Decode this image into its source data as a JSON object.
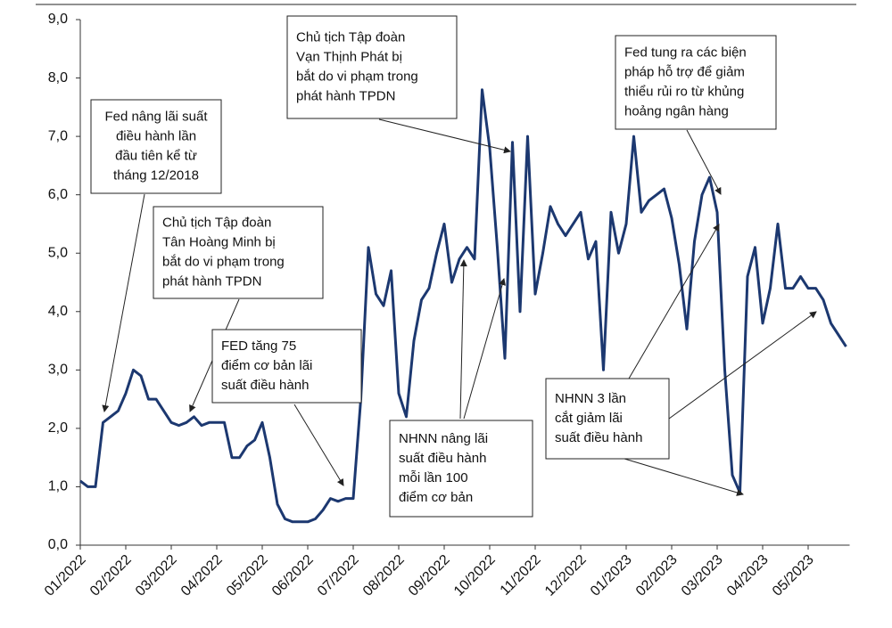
{
  "chart_data": {
    "type": "line",
    "categories": [
      "01/2022",
      null,
      null,
      null,
      null,
      null,
      "02/2022",
      null,
      null,
      null,
      null,
      null,
      "03/2022",
      null,
      null,
      null,
      null,
      null,
      "04/2022",
      null,
      null,
      null,
      null,
      null,
      "05/2022",
      null,
      null,
      null,
      null,
      null,
      "06/2022",
      null,
      null,
      null,
      null,
      null,
      "07/2022",
      null,
      null,
      null,
      null,
      null,
      "08/2022",
      null,
      null,
      null,
      null,
      null,
      "09/2022",
      null,
      null,
      null,
      null,
      null,
      "10/2022",
      null,
      null,
      null,
      null,
      null,
      "11/2022",
      null,
      null,
      null,
      null,
      null,
      "12/2022",
      null,
      null,
      null,
      null,
      null,
      "01/2023",
      null,
      null,
      null,
      null,
      null,
      "02/2023",
      null,
      null,
      null,
      null,
      null,
      "03/2023",
      null,
      null,
      null,
      null,
      null,
      "04/2023",
      null,
      null,
      null,
      null,
      null,
      "05/2023",
      null,
      null,
      null,
      null,
      null
    ],
    "series": [
      {
        "color": "#1c3870",
        "values": [
          1.1,
          1.0,
          1.0,
          2.1,
          2.2,
          2.3,
          2.6,
          3.0,
          2.9,
          2.5,
          2.5,
          2.3,
          2.1,
          2.05,
          2.1,
          2.2,
          2.05,
          2.1,
          2.1,
          2.1,
          1.5,
          1.5,
          1.7,
          1.8,
          2.1,
          1.5,
          0.7,
          0.45,
          0.4,
          0.4,
          0.4,
          0.45,
          0.6,
          0.8,
          0.75,
          0.8,
          0.8,
          2.5,
          5.1,
          4.3,
          4.1,
          4.7,
          2.6,
          2.2,
          3.5,
          4.2,
          4.4,
          5.0,
          5.5,
          4.5,
          4.9,
          5.1,
          4.9,
          7.8,
          6.8,
          5.1,
          3.2,
          6.9,
          4.0,
          7.0,
          4.3,
          5.0,
          5.8,
          5.5,
          5.3,
          5.5,
          5.7,
          4.9,
          5.2,
          3.0,
          5.7,
          5.0,
          5.5,
          7.0,
          5.7,
          5.9,
          6.0,
          6.1,
          5.6,
          4.8,
          3.7,
          5.2,
          6.0,
          6.3,
          5.7,
          3.0,
          1.2,
          0.9,
          4.6,
          5.1,
          3.8,
          4.4,
          5.5,
          4.4,
          4.4,
          4.6,
          4.4,
          4.4,
          4.2,
          3.8,
          3.6,
          3.4
        ]
      }
    ],
    "ylim": [
      0,
      9
    ],
    "yticks": [
      {
        "value": 0,
        "label": "0,0"
      },
      {
        "value": 1,
        "label": "1,0"
      },
      {
        "value": 2,
        "label": "2,0"
      },
      {
        "value": 3,
        "label": "3,0"
      },
      {
        "value": 4,
        "label": "4,0"
      },
      {
        "value": 5,
        "label": "5,0"
      },
      {
        "value": 6,
        "label": "6,0"
      },
      {
        "value": 7,
        "label": "7,0"
      },
      {
        "value": 8,
        "label": "8,0"
      },
      {
        "value": 9,
        "label": "9,0"
      }
    ],
    "annotations": [
      {
        "lines": [
          "Fed nâng lãi suất",
          "điều hành lần",
          "đầu tiên kể từ",
          "tháng 12/2018"
        ]
      },
      {
        "lines": [
          "Chủ tịch Tập đoàn",
          "Tân Hoàng Minh bị",
          "bắt do vi phạm trong",
          "phát hành TPDN"
        ]
      },
      {
        "lines": [
          "FED tăng 75",
          "điểm cơ bản lãi",
          "suất điều hành"
        ]
      },
      {
        "lines": [
          "Chủ tịch Tập đoàn",
          "Vạn Thịnh Phát bị",
          "bắt do vi phạm trong",
          "phát hành TPDN"
        ]
      },
      {
        "lines": [
          "NHNN nâng lãi",
          "suất điều hành",
          "mỗi lần 100",
          "điểm cơ bản"
        ]
      },
      {
        "lines": [
          "Fed tung ra các biện",
          "pháp hỗ trợ để giảm",
          "thiểu rủi ro từ khủng",
          "hoảng ngân hàng"
        ]
      },
      {
        "lines": [
          "NHNN 3 lần",
          "cắt giảm lãi",
          "suất điều hành"
        ]
      }
    ]
  }
}
